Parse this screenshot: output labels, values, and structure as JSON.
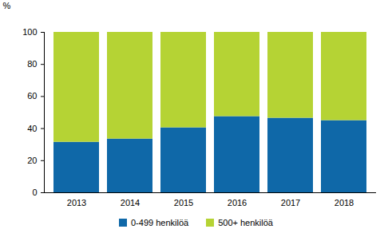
{
  "chart_data": {
    "type": "bar",
    "stacked": true,
    "categories": [
      "2013",
      "2014",
      "2015",
      "2016",
      "2017",
      "2018"
    ],
    "series": [
      {
        "name": "0-499 henkilöä",
        "color": "#0f68a8",
        "values": [
          31.5,
          33.5,
          40.5,
          47.5,
          46.5,
          45
        ]
      },
      {
        "name": "500+ henkilöä",
        "color": "#b5d334",
        "values": [
          68.5,
          66.5,
          59.5,
          52.5,
          53.5,
          55
        ]
      }
    ],
    "y_label": "%",
    "ylim": [
      0,
      100
    ],
    "yticks": [
      0,
      20,
      40,
      60,
      80,
      100
    ],
    "grid": false,
    "legend": "bottom"
  }
}
